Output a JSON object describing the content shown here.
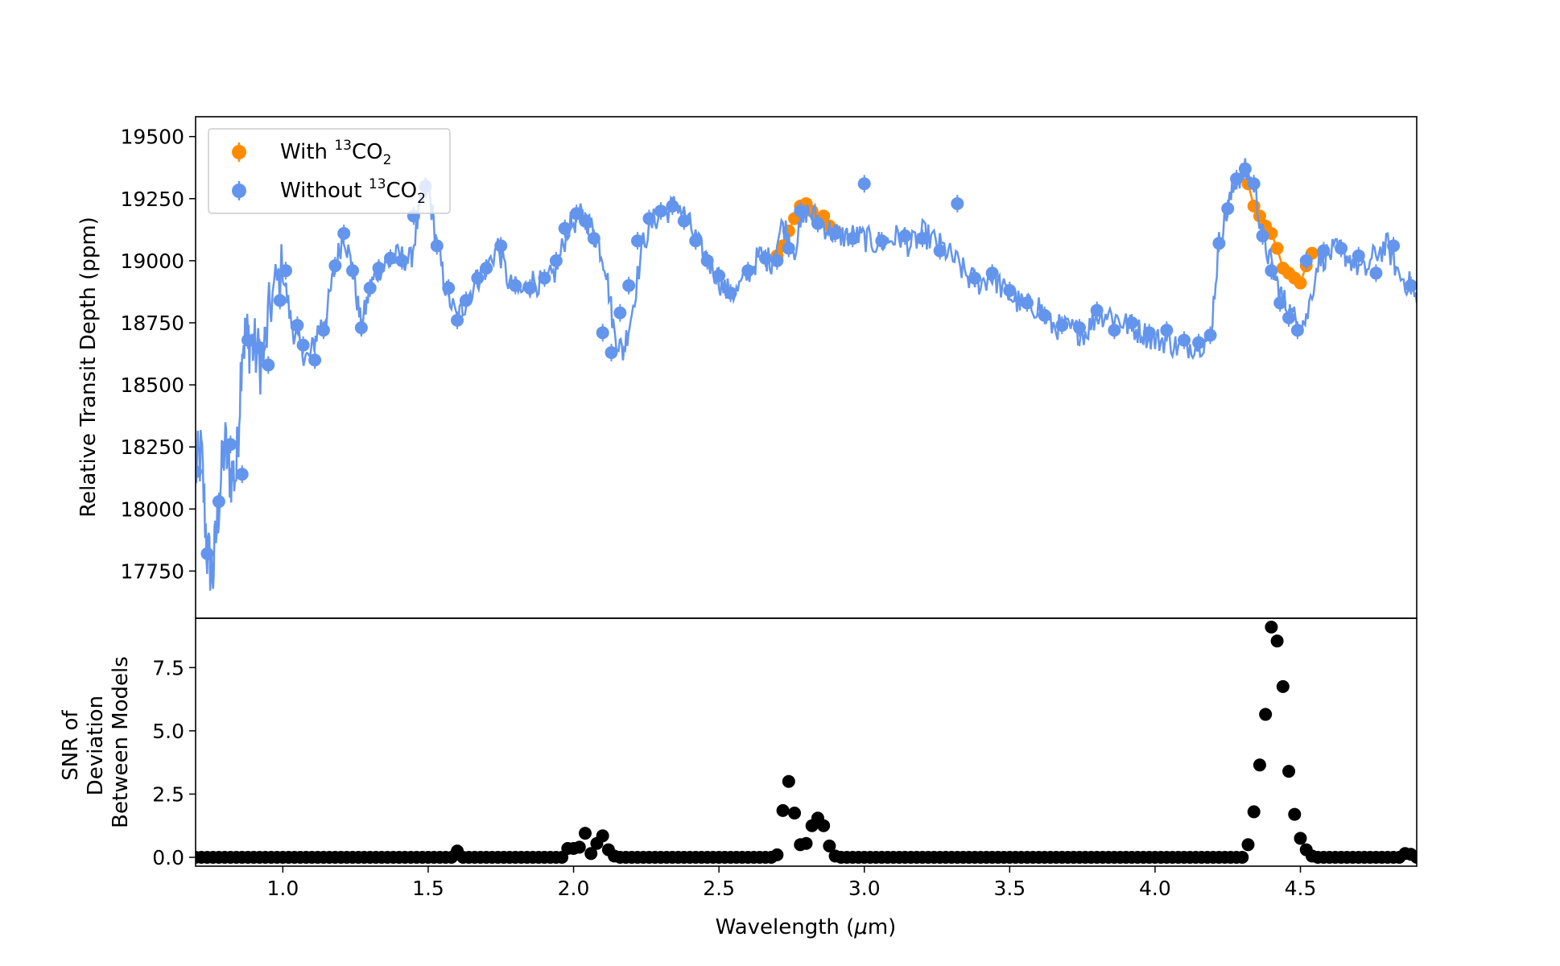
{
  "chart_data": [
    {
      "type": "line",
      "panel": "top",
      "ylabel": "Relative Transit Depth (ppm)",
      "xlim": [
        0.7,
        4.9
      ],
      "ylim": [
        17560,
        19580
      ],
      "yticks": [
        "17750",
        "18000",
        "18250",
        "18500",
        "18750",
        "19000",
        "19250",
        "19500"
      ],
      "legend": {
        "placement": "top-left",
        "entries": [
          {
            "name_main": "With ",
            "name_sup": "13",
            "name_rest": "CO",
            "name_sub": "2",
            "color": "#ff8c00"
          },
          {
            "name_main": "Without ",
            "name_sup": "13",
            "name_rest": "CO",
            "name_sub": "2",
            "color": "#6495ed"
          }
        ]
      },
      "series": [
        {
          "name": "With 13CO2",
          "color": "#ff8c00",
          "x": [
            2.7,
            2.72,
            2.74,
            2.76,
            2.78,
            2.8,
            2.82,
            2.84,
            2.86,
            2.88,
            2.9,
            4.32,
            4.34,
            4.36,
            4.38,
            4.4,
            4.42,
            4.44,
            4.46,
            4.48,
            4.5,
            4.52,
            4.54
          ],
          "y": [
            19020,
            19060,
            19120,
            19170,
            19220,
            19230,
            19200,
            19160,
            19180,
            19140,
            19120,
            19310,
            19220,
            19180,
            19140,
            19110,
            19050,
            18970,
            18950,
            18930,
            18910,
            18980,
            19030
          ]
        },
        {
          "name": "Without 13CO2",
          "color": "#6495ed",
          "x": [
            0.7,
            0.72,
            0.74,
            0.76,
            0.78,
            0.8,
            0.82,
            0.84,
            0.86,
            0.88,
            0.9,
            0.93,
            0.96,
            1.0,
            1.03,
            1.06,
            1.09,
            1.12,
            1.15,
            1.18,
            1.21,
            1.24,
            1.27,
            1.3,
            1.33,
            1.36,
            1.4,
            1.44,
            1.47,
            1.5,
            1.53,
            1.56,
            1.6,
            1.63,
            1.67,
            1.7,
            1.74,
            1.78,
            1.82,
            1.86,
            1.9,
            1.94,
            1.98,
            2.02,
            2.05,
            2.08,
            2.11,
            2.14,
            2.17,
            2.2,
            2.24,
            2.28,
            2.32,
            2.36,
            2.4,
            2.44,
            2.48,
            2.52,
            2.56,
            2.6,
            2.64,
            2.68,
            2.72,
            2.76,
            2.8,
            2.84,
            2.88,
            2.92,
            2.96,
            3.0,
            3.04,
            3.08,
            3.12,
            3.16,
            3.2,
            3.24,
            3.28,
            3.32,
            3.36,
            3.4,
            3.44,
            3.48,
            3.52,
            3.56,
            3.6,
            3.64,
            3.68,
            3.72,
            3.76,
            3.8,
            3.84,
            3.88,
            3.92,
            3.96,
            4.0,
            4.04,
            4.08,
            4.12,
            4.16,
            4.19,
            4.22,
            4.25,
            4.28,
            4.31,
            4.34,
            4.37,
            4.4,
            4.43,
            4.46,
            4.49,
            4.52,
            4.56,
            4.6,
            4.64,
            4.68,
            4.72,
            4.76,
            4.8,
            4.84,
            4.88,
            4.9
          ],
          "y": [
            18150,
            18220,
            17820,
            17740,
            18030,
            18260,
            18140,
            18140,
            18680,
            18690,
            18650,
            18580,
            18840,
            18960,
            18740,
            18650,
            18600,
            18720,
            18780,
            18980,
            19110,
            18960,
            18730,
            18890,
            18970,
            18990,
            19020,
            19000,
            19200,
            19300,
            19060,
            18890,
            18760,
            18840,
            18930,
            18970,
            19060,
            18900,
            18870,
            18920,
            18900,
            18960,
            19130,
            19180,
            19160,
            19090,
            18980,
            18710,
            18630,
            18790,
            19080,
            19170,
            19200,
            19230,
            19140,
            19040,
            18970,
            18880,
            18870,
            18950,
            19020,
            19000,
            19150,
            19050,
            19200,
            19170,
            19120,
            19100,
            19100,
            19090,
            19070,
            19080,
            19100,
            19060,
            19110,
            19080,
            19040,
            18990,
            18930,
            18910,
            18940,
            18880,
            18840,
            18810,
            18820,
            18740,
            18730,
            18720,
            18710,
            18780,
            18790,
            18760,
            18730,
            18710,
            18680,
            18680,
            18650,
            18660,
            18670,
            18690,
            19070,
            19210,
            19330,
            19360,
            19310,
            19100,
            18980,
            18870,
            18800,
            18750,
            18760,
            19000,
            19030,
            19040,
            19000,
            18950,
            19030,
            19060,
            18940,
            18900,
            18830
          ],
          "markers_x": [
            0.7,
            0.74,
            0.78,
            0.82,
            0.86,
            0.88,
            0.92,
            0.95,
            0.99,
            1.01,
            1.05,
            1.07,
            1.11,
            1.14,
            1.18,
            1.21,
            1.24,
            1.27,
            1.3,
            1.33,
            1.37,
            1.41,
            1.45,
            1.49,
            1.53,
            1.57,
            1.6,
            1.63,
            1.67,
            1.7,
            1.75,
            1.8,
            1.85,
            1.9,
            1.94,
            1.97,
            2.01,
            2.04,
            2.07,
            2.1,
            2.13,
            2.16,
            2.19,
            2.22,
            2.26,
            2.3,
            2.34,
            2.38,
            2.42,
            2.46,
            2.5,
            2.54,
            2.6,
            2.66,
            2.7,
            2.74,
            2.78,
            2.84,
            2.9,
            2.96,
            3.0,
            3.06,
            3.14,
            3.2,
            3.26,
            3.32,
            3.38,
            3.44,
            3.5,
            3.56,
            3.62,
            3.68,
            3.74,
            3.8,
            3.86,
            3.92,
            3.98,
            4.04,
            4.1,
            4.15,
            4.19,
            4.22,
            4.25,
            4.28,
            4.31,
            4.34,
            4.37,
            4.4,
            4.43,
            4.46,
            4.49,
            4.52,
            4.58,
            4.64,
            4.7,
            4.76,
            4.82,
            4.88
          ],
          "markers_y": [
            18150,
            17820,
            18030,
            18260,
            18140,
            18680,
            18650,
            18580,
            18840,
            18960,
            18740,
            18660,
            18600,
            18720,
            18980,
            19110,
            18960,
            18730,
            18890,
            18970,
            19010,
            19000,
            19180,
            19300,
            19060,
            18890,
            18760,
            18840,
            18930,
            18970,
            19060,
            18900,
            18890,
            18930,
            19000,
            19130,
            19190,
            19160,
            19090,
            18710,
            18630,
            18790,
            18900,
            19080,
            19170,
            19200,
            19220,
            19160,
            19080,
            19000,
            18940,
            18870,
            18960,
            19010,
            19000,
            19050,
            19200,
            19150,
            19110,
            19090,
            19310,
            19080,
            19100,
            19090,
            19040,
            19230,
            18930,
            18950,
            18880,
            18830,
            18780,
            18740,
            18730,
            18800,
            18720,
            18750,
            18710,
            18720,
            18680,
            18670,
            18700,
            19070,
            19210,
            19330,
            19370,
            19310,
            19100,
            18960,
            18830,
            18770,
            18720,
            19000,
            19040,
            19050,
            19020,
            18950,
            19060,
            18900,
            18820
          ]
        }
      ]
    },
    {
      "type": "scatter",
      "panel": "bottom",
      "xlabel_main": "Wavelength (",
      "xlabel_mu": "μ",
      "xlabel_rest": "m)",
      "ylabel_lines": [
        "SNR of",
        "Deviation",
        "Between Models"
      ],
      "xlim": [
        0.7,
        4.9
      ],
      "ylim": [
        -0.35,
        9.45
      ],
      "xticks": [
        "1.0",
        "1.5",
        "2.0",
        "2.5",
        "3.0",
        "3.5",
        "4.0",
        "4.5"
      ],
      "yticks": [
        "0.0",
        "2.5",
        "5.0",
        "7.5"
      ],
      "series": [
        {
          "name": "SNR",
          "color": "#000000",
          "x": [
            1.6,
            1.98,
            2.0,
            2.02,
            2.04,
            2.06,
            2.08,
            2.1,
            2.12,
            2.14,
            2.7,
            2.72,
            2.74,
            2.76,
            2.78,
            2.8,
            2.82,
            2.84,
            2.86,
            2.88,
            2.9,
            4.32,
            4.34,
            4.36,
            4.38,
            4.4,
            4.42,
            4.44,
            4.46,
            4.48,
            4.5,
            4.52,
            4.54,
            4.86,
            4.88
          ],
          "y": [
            0.25,
            0.35,
            0.35,
            0.4,
            0.95,
            0.15,
            0.55,
            0.85,
            0.3,
            0.05,
            0.1,
            1.85,
            3.0,
            1.75,
            0.5,
            0.55,
            1.25,
            1.55,
            1.25,
            0.45,
            0.05,
            0.5,
            1.8,
            3.65,
            5.65,
            9.1,
            8.55,
            6.75,
            3.4,
            1.7,
            0.75,
            0.3,
            0.05,
            0.15,
            0.12
          ]
        }
      ]
    }
  ]
}
